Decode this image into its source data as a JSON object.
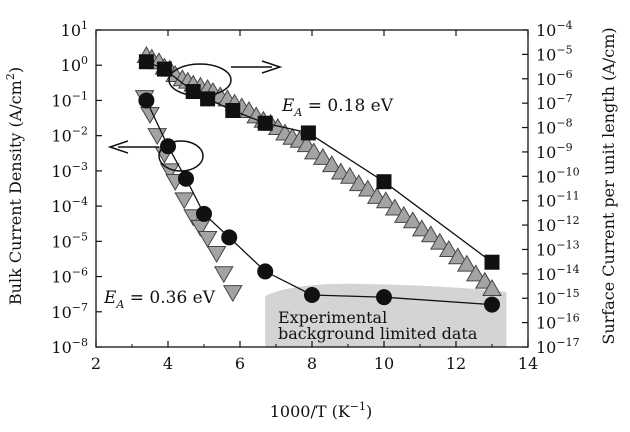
{
  "chart_data": {
    "type": "scatter",
    "xlabel_base": "1000/T (K",
    "xlabel_exp": "−1",
    "xlabel_close": ")",
    "ylabel_left_base": "Bulk Current Density (A/cm",
    "ylabel_left_exp": "2",
    "ylabel_left_close": ")",
    "ylabel_right": "Surface Current per unit length (A/cm)",
    "xlim": [
      2,
      14
    ],
    "xticks": [
      2,
      4,
      6,
      8,
      10,
      12,
      14
    ],
    "ylim_left_log10": [
      -8,
      1
    ],
    "yticks_left_exp": [
      1,
      0,
      -1,
      -2,
      -3,
      -4,
      -5,
      -6,
      -7,
      -8
    ],
    "ylim_right_log10": [
      -17,
      -4
    ],
    "yticks_right_exp": [
      -4,
      -5,
      -6,
      -7,
      -8,
      -9,
      -10,
      -11,
      -12,
      -13,
      -14,
      -15,
      -16,
      -17
    ],
    "tick_base": "10",
    "log_scale": true,
    "grid": false,
    "series": [
      {
        "axis": "right",
        "marker": "square",
        "color": "#111111",
        "connected": true,
        "points": [
          [
            3.4,
            5e-06
          ],
          [
            3.9,
            2.5e-06
          ],
          [
            4.7,
            3e-07
          ],
          [
            5.1,
            1.5e-07
          ],
          [
            5.8,
            5e-08
          ],
          [
            6.7,
            1.5e-08
          ],
          [
            7.9,
            6e-09
          ],
          [
            10.0,
            6e-11
          ],
          [
            13.0,
            3e-14
          ]
        ]
      },
      {
        "axis": "right",
        "marker": "triangle-up",
        "color": "#a3a3a3",
        "connected": false,
        "points": [
          [
            3.4,
            9e-06
          ],
          [
            3.55,
            7e-06
          ],
          [
            3.75,
            5e-06
          ],
          [
            3.9,
            3e-06
          ],
          [
            4.05,
            2.5e-06
          ],
          [
            4.2,
            1.5e-06
          ],
          [
            4.4,
            1e-06
          ],
          [
            4.55,
            8e-07
          ],
          [
            4.7,
            6e-07
          ],
          [
            4.9,
            5e-07
          ],
          [
            5.1,
            4e-07
          ],
          [
            5.25,
            3e-07
          ],
          [
            5.45,
            2e-07
          ],
          [
            5.65,
            1.5e-07
          ],
          [
            5.85,
            1e-07
          ],
          [
            6.05,
            7e-08
          ],
          [
            6.25,
            5e-08
          ],
          [
            6.45,
            3e-08
          ],
          [
            6.65,
            2e-08
          ],
          [
            6.85,
            1.5e-08
          ],
          [
            7.05,
            1e-08
          ],
          [
            7.25,
            6e-09
          ],
          [
            7.45,
            4e-09
          ],
          [
            7.65,
            3e-09
          ],
          [
            7.85,
            2e-09
          ],
          [
            8.05,
            1e-09
          ],
          [
            8.3,
            6e-10
          ],
          [
            8.55,
            3e-10
          ],
          [
            8.8,
            1.5e-10
          ],
          [
            9.05,
            1e-10
          ],
          [
            9.3,
            5e-11
          ],
          [
            9.55,
            3e-11
          ],
          [
            9.8,
            1.5e-11
          ],
          [
            10.05,
            1e-11
          ],
          [
            10.3,
            5e-12
          ],
          [
            10.55,
            2.5e-12
          ],
          [
            10.8,
            1.5e-12
          ],
          [
            11.05,
            7e-13
          ],
          [
            11.3,
            4e-13
          ],
          [
            11.55,
            2e-13
          ],
          [
            11.8,
            1e-13
          ],
          [
            12.05,
            5e-14
          ],
          [
            12.3,
            2.5e-14
          ],
          [
            12.55,
            1e-14
          ],
          [
            12.8,
            5e-15
          ],
          [
            13.0,
            2.5e-15
          ]
        ]
      },
      {
        "axis": "left",
        "marker": "circle",
        "color": "#111111",
        "connected": true,
        "points": [
          [
            3.4,
            0.1
          ],
          [
            4.0,
            0.005
          ],
          [
            4.5,
            0.0006
          ],
          [
            5.0,
            6e-05
          ],
          [
            5.7,
            1.3e-05
          ],
          [
            6.7,
            1.4e-06
          ],
          [
            8.0,
            3e-07
          ],
          [
            10.0,
            2.6e-07
          ],
          [
            13.0,
            1.6e-07
          ]
        ]
      },
      {
        "axis": "left",
        "marker": "triangle-down",
        "color": "#a3a3a3",
        "connected": false,
        "points": [
          [
            3.35,
            0.12
          ],
          [
            3.5,
            0.04
          ],
          [
            3.7,
            0.01
          ],
          [
            3.9,
            0.003
          ],
          [
            4.05,
            0.001
          ],
          [
            4.2,
            0.0005
          ],
          [
            4.45,
            0.00015
          ],
          [
            4.7,
            5e-05
          ],
          [
            4.9,
            2.5e-05
          ],
          [
            5.1,
            1.2e-05
          ],
          [
            5.35,
            4.5e-06
          ],
          [
            5.55,
            1.2e-06
          ],
          [
            5.8,
            3.5e-07
          ]
        ]
      }
    ],
    "annotations": {
      "ea_upper_sym": "E",
      "ea_upper_sub": "A",
      "ea_upper_val": " = 0.18 eV",
      "ea_lower_sym": "E",
      "ea_lower_sub": "A",
      "ea_lower_val": " = 0.36 eV",
      "exp_line1": "Experimental",
      "exp_line2": "background limited data"
    },
    "colors": {
      "band": "#d4d4d4",
      "gray_marker": "#a3a3a3",
      "black": "#111111"
    }
  }
}
